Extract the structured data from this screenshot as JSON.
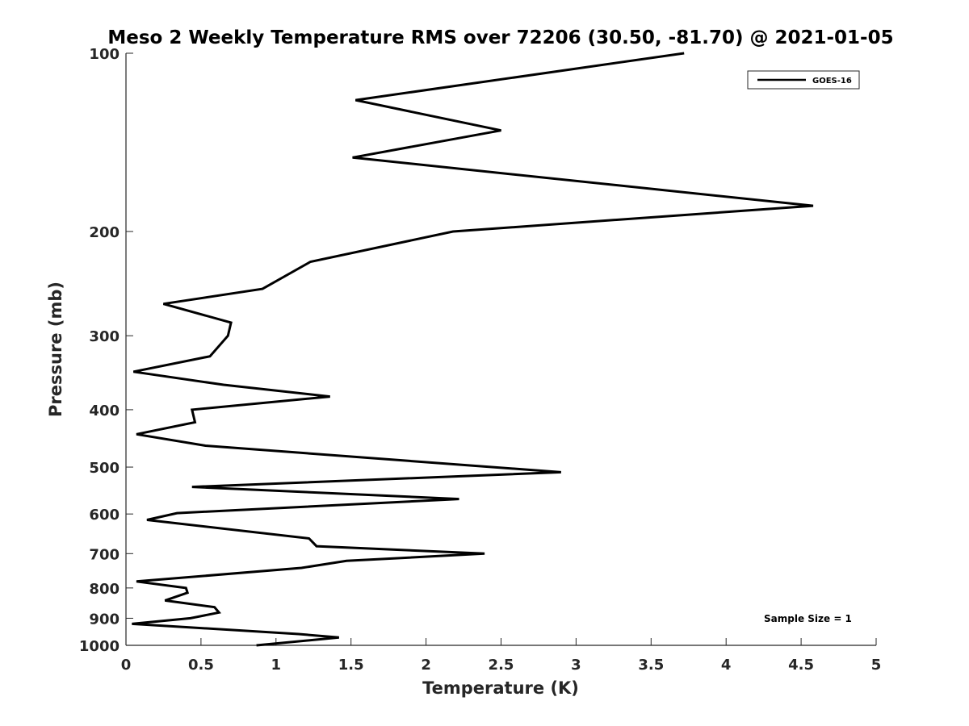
{
  "chart_data": {
    "type": "line",
    "title": "Meso 2 Weekly Temperature RMS over 72206 (30.50, -81.70) @ 2021-01-05",
    "xlabel": "Temperature (K)",
    "ylabel": "Pressure (mb)",
    "xlim": [
      0,
      5
    ],
    "ylim": [
      100,
      1000
    ],
    "y_scale": "log",
    "y_reversed": true,
    "x_ticks": [
      "0",
      "0.5",
      "1",
      "1.5",
      "2",
      "2.5",
      "3",
      "3.5",
      "4",
      "4.5",
      "5"
    ],
    "y_ticks": [
      "100",
      "200",
      "300",
      "400",
      "500",
      "600",
      "700",
      "800",
      "900",
      "1000"
    ],
    "grid": false,
    "legend_position": "top-right",
    "series": [
      {
        "name": "GOES-16",
        "color": "#000000",
        "x": [
          3.72,
          1.53,
          2.5,
          1.51,
          4.58,
          2.18,
          1.23,
          0.91,
          0.25,
          0.7,
          0.68,
          0.56,
          0.05,
          0.65,
          1.36,
          0.44,
          0.46,
          0.07,
          0.53,
          2.9,
          0.44,
          2.22,
          0.34,
          0.14,
          1.22,
          1.27,
          2.39,
          1.47,
          1.17,
          0.07,
          0.4,
          0.41,
          0.26,
          0.59,
          0.62,
          0.43,
          0.04,
          1.15,
          1.42,
          0.87
        ],
        "y": [
          100,
          120,
          135,
          150,
          181,
          200,
          225,
          250,
          265,
          285,
          300,
          325,
          345,
          363,
          380,
          400,
          420,
          440,
          460,
          510,
          540,
          566,
          598,
          614,
          660,
          680,
          700,
          720,
          740,
          780,
          800,
          815,
          840,
          862,
          880,
          900,
          920,
          957,
          970,
          1000
        ]
      }
    ],
    "annotations": [
      "Sample Size = 1"
    ]
  }
}
